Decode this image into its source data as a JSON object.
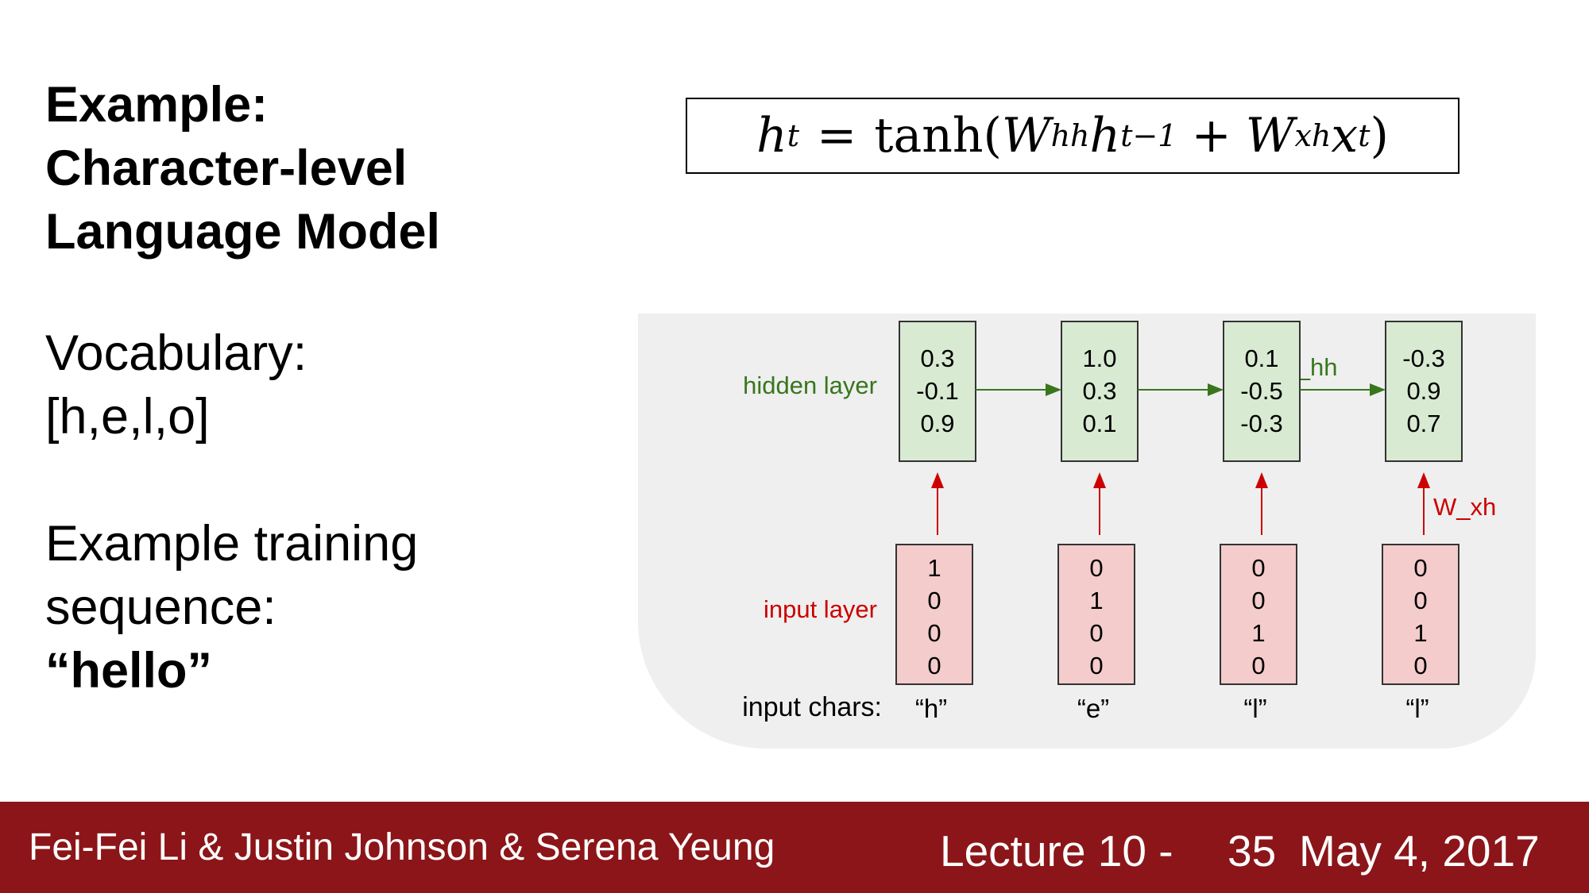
{
  "title": {
    "line1": "Example:",
    "line2": "Character-level",
    "line3": "Language Model"
  },
  "vocabulary": {
    "label": "Vocabulary:",
    "value": "[h,e,l,o]"
  },
  "training": {
    "line1": "Example training",
    "line2": "sequence:",
    "value": "“hello”"
  },
  "formula": {
    "h": "h",
    "t": "t",
    "eq": "=",
    "tanh": "tanh(",
    "W1": "W",
    "hh": "hh",
    "h2": "h",
    "tminus1": "t−1",
    "plus": "+",
    "W2": "W",
    "xh": "xh",
    "x": "x",
    "t2": "t",
    "close": ")"
  },
  "diagram": {
    "hidden_label": "hidden layer",
    "input_label": "input layer",
    "chars_label": "input chars:",
    "w_hh_label": "W_hh",
    "w_xh_label": "W_xh",
    "colors": {
      "hidden_fill": "#d9ead3",
      "hidden_text": "#38761d",
      "input_fill": "#f4cccc",
      "input_text": "#cc0000",
      "hidden_arrow": "#38761d",
      "input_arrow": "#cc0000"
    },
    "steps": [
      {
        "char": "“h”",
        "hidden": [
          "0.3",
          "-0.1",
          "0.9"
        ],
        "input": [
          "1",
          "0",
          "0",
          "0"
        ]
      },
      {
        "char": "“e”",
        "hidden": [
          "1.0",
          "0.3",
          "0.1"
        ],
        "input": [
          "0",
          "1",
          "0",
          "0"
        ]
      },
      {
        "char": "“l”",
        "hidden": [
          "0.1",
          "-0.5",
          "-0.3"
        ],
        "input": [
          "0",
          "0",
          "1",
          "0"
        ]
      },
      {
        "char": "“l”",
        "hidden": [
          "-0.3",
          "0.9",
          "0.7"
        ],
        "input": [
          "0",
          "0",
          "1",
          "0"
        ]
      }
    ]
  },
  "footer": {
    "authors": "Fei-Fei Li & Justin Johnson & Serena Yeung",
    "lecture": "Lecture 10 -",
    "page": "35",
    "date": "May 4, 2017"
  }
}
